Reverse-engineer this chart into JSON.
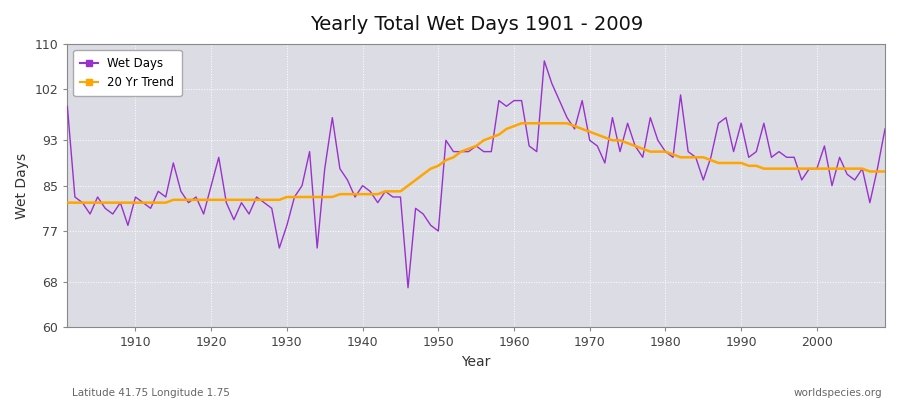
{
  "title": "Yearly Total Wet Days 1901 - 2009",
  "xlabel": "Year",
  "ylabel": "Wet Days",
  "bottom_left_label": "Latitude 41.75 Longitude 1.75",
  "bottom_right_label": "worldspecies.org",
  "wet_days_color": "#9932CC",
  "trend_color": "#FFA500",
  "plot_bg_color": "#DCDCE4",
  "fig_bg_color": "#FFFFFF",
  "ylim": [
    60,
    110
  ],
  "yticks": [
    60,
    68,
    77,
    85,
    93,
    102,
    110
  ],
  "xlim": [
    1901,
    2009
  ],
  "xticks": [
    1910,
    1920,
    1930,
    1940,
    1950,
    1960,
    1970,
    1980,
    1990,
    2000
  ],
  "years": [
    1901,
    1902,
    1903,
    1904,
    1905,
    1906,
    1907,
    1908,
    1909,
    1910,
    1911,
    1912,
    1913,
    1914,
    1915,
    1916,
    1917,
    1918,
    1919,
    1920,
    1921,
    1922,
    1923,
    1924,
    1925,
    1926,
    1927,
    1928,
    1929,
    1930,
    1931,
    1932,
    1933,
    1934,
    1935,
    1936,
    1937,
    1938,
    1939,
    1940,
    1941,
    1942,
    1943,
    1944,
    1945,
    1946,
    1947,
    1948,
    1949,
    1950,
    1951,
    1952,
    1953,
    1954,
    1955,
    1956,
    1957,
    1958,
    1959,
    1960,
    1961,
    1962,
    1963,
    1964,
    1965,
    1966,
    1967,
    1968,
    1969,
    1970,
    1971,
    1972,
    1973,
    1974,
    1975,
    1976,
    1977,
    1978,
    1979,
    1980,
    1981,
    1982,
    1983,
    1984,
    1985,
    1986,
    1987,
    1988,
    1989,
    1990,
    1991,
    1992,
    1993,
    1994,
    1995,
    1996,
    1997,
    1998,
    1999,
    2000,
    2001,
    2002,
    2003,
    2004,
    2005,
    2006,
    2007,
    2008,
    2009
  ],
  "wet_days": [
    99,
    83,
    82,
    80,
    83,
    81,
    80,
    82,
    78,
    83,
    82,
    81,
    84,
    83,
    89,
    84,
    82,
    83,
    80,
    85,
    90,
    82,
    79,
    82,
    80,
    83,
    82,
    81,
    74,
    78,
    83,
    85,
    91,
    74,
    88,
    97,
    88,
    86,
    83,
    85,
    84,
    82,
    84,
    83,
    83,
    67,
    81,
    80,
    78,
    77,
    93,
    91,
    91,
    91,
    92,
    91,
    91,
    100,
    99,
    100,
    100,
    92,
    91,
    107,
    103,
    100,
    97,
    95,
    100,
    93,
    92,
    89,
    97,
    91,
    96,
    92,
    90,
    97,
    93,
    91,
    90,
    101,
    91,
    90,
    86,
    90,
    96,
    97,
    91,
    96,
    90,
    91,
    96,
    90,
    91,
    90,
    90,
    86,
    88,
    88,
    92,
    85,
    90,
    87,
    86,
    88,
    82,
    88,
    95
  ],
  "trend": [
    82,
    82,
    82,
    82,
    82,
    82,
    82,
    82,
    82,
    82,
    82,
    82,
    82,
    82,
    82.5,
    82.5,
    82.5,
    82.5,
    82.5,
    82.5,
    82.5,
    82.5,
    82.5,
    82.5,
    82.5,
    82.5,
    82.5,
    82.5,
    82.5,
    83,
    83,
    83,
    83,
    83,
    83,
    83,
    83.5,
    83.5,
    83.5,
    83.5,
    83.5,
    83.5,
    84,
    84,
    84,
    85,
    86,
    87,
    88,
    88.5,
    89.5,
    90,
    91,
    91.5,
    92,
    93,
    93.5,
    94,
    95,
    95.5,
    96,
    96,
    96,
    96,
    96,
    96,
    96,
    95.5,
    95,
    94.5,
    94,
    93.5,
    93,
    93,
    92.5,
    92,
    91.5,
    91,
    91,
    91,
    90.5,
    90,
    90,
    90,
    90,
    89.5,
    89,
    89,
    89,
    89,
    88.5,
    88.5,
    88,
    88,
    88,
    88,
    88,
    88,
    88,
    88,
    88,
    88,
    88,
    88,
    88,
    88,
    87.5,
    87.5,
    87.5
  ]
}
